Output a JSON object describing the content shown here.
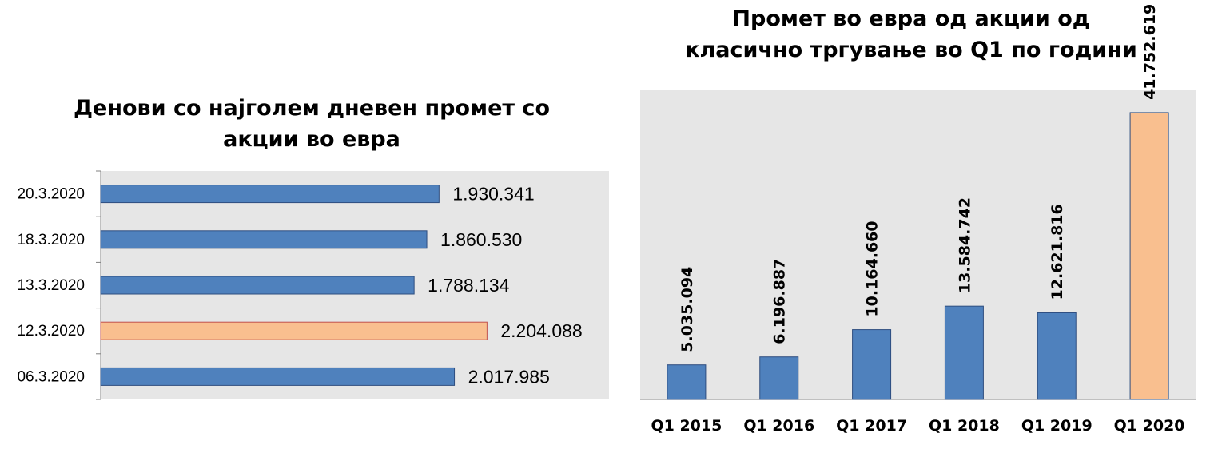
{
  "chart_data": [
    {
      "type": "bar",
      "orientation": "horizontal",
      "title_lines": [
        "Денови со најголем дневен промет со",
        "акции во евра"
      ],
      "categories": [
        "20.3.2020",
        "18.3.2020",
        "13.3.2020",
        "12.3.2020",
        "06.3.2020"
      ],
      "values": [
        1930341,
        1860530,
        1788134,
        2204088,
        2017985
      ],
      "value_labels": [
        "1.930.341",
        "1.860.530",
        "1.788.134",
        "2.204.088",
        "2.017.985"
      ],
      "highlight_index": 3,
      "xlim": [
        0,
        2900000
      ],
      "grid": false
    },
    {
      "type": "bar",
      "orientation": "vertical",
      "title_lines": [
        "Промет во евра од акции од",
        "класично тргување во Q1 по години"
      ],
      "categories": [
        "Q1 2015",
        "Q1 2016",
        "Q1 2017",
        "Q1 2018",
        "Q1 2019",
        "Q1 2020"
      ],
      "values": [
        5035094,
        6196887,
        10164660,
        13584742,
        12621816,
        41752619
      ],
      "value_labels": [
        "5.035.094",
        "6.196.887",
        "10.164.660",
        "13.584.742",
        "12.621.816",
        "41.752.619"
      ],
      "highlight_index": 5,
      "ylim": [
        0,
        45000000
      ],
      "grid": false
    }
  ],
  "colors": {
    "bar": "#4f81bd",
    "bar_edge": "#2e4d7f",
    "highlight": "#f9bf8f",
    "highlight_edge": "#c0504d",
    "plot_bg": "#e6e6e6",
    "axis": "#808080"
  }
}
